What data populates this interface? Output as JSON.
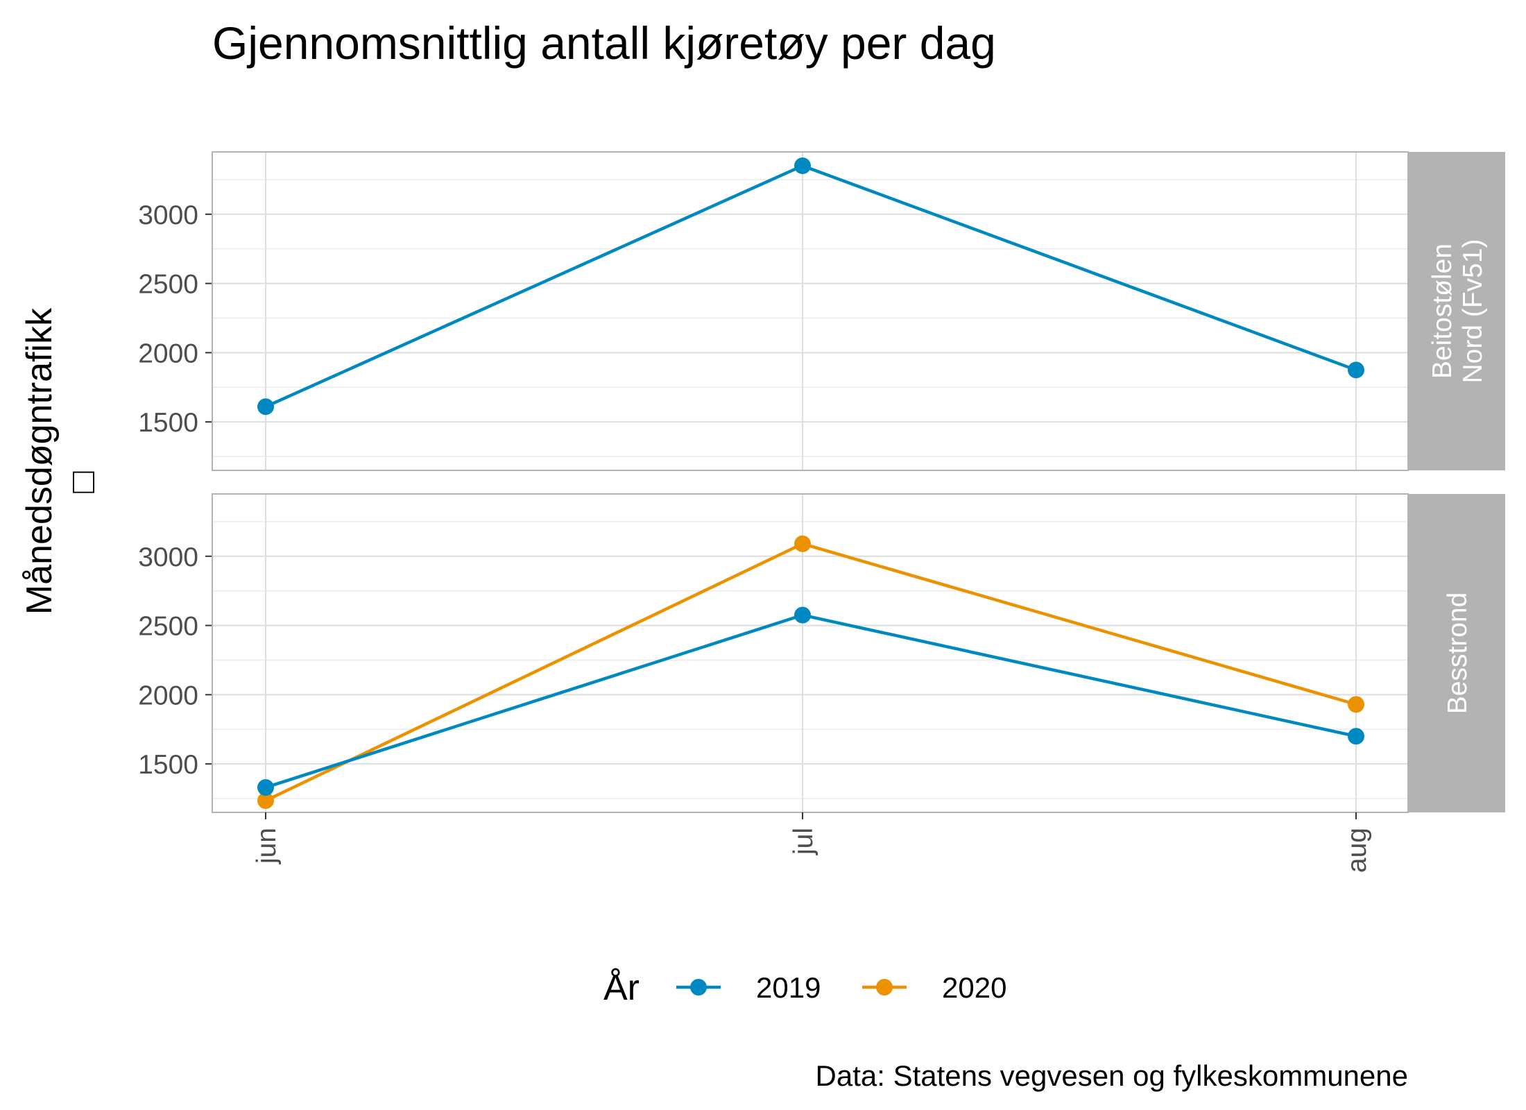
{
  "chart_data": {
    "type": "line",
    "title": "Gjennomsnittlig antall kjøretøy per dag",
    "ylabel": "Månedsdøgntrafikk",
    "ylabel_glyph": "□",
    "xlabel": "",
    "categories": [
      "jun",
      "jul",
      "aug"
    ],
    "ylim": [
      1150,
      3450
    ],
    "yticks": [
      1500,
      2000,
      2500,
      3000
    ],
    "grid": true,
    "legend": {
      "title": "År",
      "position": "bottom"
    },
    "caption": "Data: Statens vegvesen og fylkeskommunene",
    "facets": [
      {
        "label_lines": [
          "Beitostølen",
          "Nord (Fv51)"
        ],
        "series": [
          {
            "name": "2019",
            "values": [
              1610,
              3350,
              1875
            ]
          }
        ]
      },
      {
        "label_lines": [
          "Besstrond"
        ],
        "series": [
          {
            "name": "2019",
            "values": [
              1330,
              2575,
              1700
            ]
          },
          {
            "name": "2020",
            "values": [
              1235,
              3090,
              1930
            ]
          }
        ]
      }
    ],
    "series_colors": {
      "2019": "#0089c1",
      "2020": "#ec9100"
    }
  }
}
